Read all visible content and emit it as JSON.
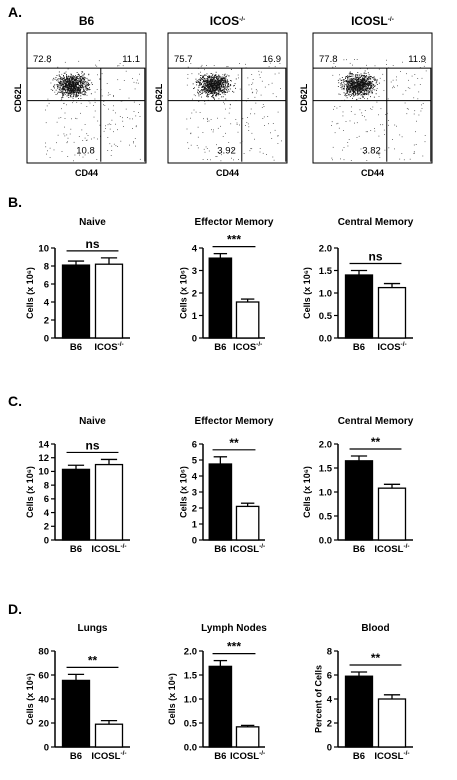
{
  "sections": [
    "A.",
    "B.",
    "C.",
    "D."
  ],
  "superscript_text": "-/-",
  "flow": [
    {
      "title": "B6",
      "xlabel": "CD44",
      "ylabel": "CD62L",
      "q_naive": "72.8",
      "q_cm": "11.1",
      "q_em": "10.8"
    },
    {
      "title": "ICOS",
      "title_sup": "-/-",
      "xlabel": "CD44",
      "ylabel": "CD62L",
      "q_naive": "75.7",
      "q_cm": "16.9",
      "q_em": "3.92"
    },
    {
      "title": "ICOSL",
      "title_sup": "-/-",
      "xlabel": "CD44",
      "ylabel": "CD62L",
      "q_naive": "77.8",
      "q_cm": "11.9",
      "q_em": "3.82"
    }
  ],
  "chart_data": [
    {
      "type": "bar",
      "section": "B.",
      "title": "Naive",
      "ylabel": "Cells (x 10⁶)",
      "categories": [
        "B6",
        "ICOS"
      ],
      "category_sups": [
        "",
        "-/-"
      ],
      "values": [
        8.1,
        8.2
      ],
      "errors": [
        0.45,
        0.7
      ],
      "ylim": [
        0,
        10
      ],
      "yticks": [
        "0",
        "2",
        "4",
        "6",
        "8",
        "10"
      ],
      "significance": "ns",
      "fills": [
        "#000000",
        "#ffffff"
      ]
    },
    {
      "type": "bar",
      "section": "B.",
      "title": "Effector Memory",
      "ylabel": "Cells (x 10⁶)",
      "categories": [
        "B6",
        "ICOS"
      ],
      "category_sups": [
        "",
        "-/-"
      ],
      "values": [
        3.55,
        1.6
      ],
      "errors": [
        0.2,
        0.13
      ],
      "ylim": [
        0,
        4
      ],
      "yticks": [
        "0",
        "1",
        "2",
        "3",
        "4"
      ],
      "significance": "***",
      "fills": [
        "#000000",
        "#ffffff"
      ]
    },
    {
      "type": "bar",
      "section": "B.",
      "title": "Central Memory",
      "ylabel": "Cells (x 10⁶)",
      "categories": [
        "B6",
        "ICOS"
      ],
      "category_sups": [
        "",
        "-/-"
      ],
      "values": [
        1.4,
        1.12
      ],
      "errors": [
        0.1,
        0.09
      ],
      "ylim": [
        0,
        2
      ],
      "yticks": [
        "0.0",
        "0.5",
        "1.0",
        "1.5",
        "2.0"
      ],
      "significance": "ns",
      "fills": [
        "#000000",
        "#ffffff"
      ]
    },
    {
      "type": "bar",
      "section": "C.",
      "title": "Naive",
      "ylabel": "Cells (x 10⁶)",
      "categories": [
        "B6",
        "ICOSL"
      ],
      "category_sups": [
        "",
        "-/-"
      ],
      "values": [
        10.3,
        11.0
      ],
      "errors": [
        0.6,
        0.75
      ],
      "ylim": [
        0,
        14
      ],
      "yticks": [
        "0",
        "2",
        "4",
        "6",
        "8",
        "10",
        "12",
        "14"
      ],
      "significance": "ns",
      "fills": [
        "#000000",
        "#ffffff"
      ]
    },
    {
      "type": "bar",
      "section": "C.",
      "title": "Effector Memory",
      "ylabel": "Cells (x 10⁶)",
      "categories": [
        "B6",
        "ICOSL"
      ],
      "category_sups": [
        "",
        "-/-"
      ],
      "values": [
        4.75,
        2.1
      ],
      "errors": [
        0.45,
        0.2
      ],
      "ylim": [
        0,
        6
      ],
      "yticks": [
        "0",
        "1",
        "2",
        "3",
        "4",
        "5",
        "6"
      ],
      "significance": "**",
      "fills": [
        "#000000",
        "#ffffff"
      ]
    },
    {
      "type": "bar",
      "section": "C.",
      "title": "Central Memory",
      "ylabel": "Cells (x 10⁶)",
      "categories": [
        "B6",
        "ICOSL"
      ],
      "category_sups": [
        "",
        "-/-"
      ],
      "values": [
        1.65,
        1.08
      ],
      "errors": [
        0.1,
        0.08
      ],
      "ylim": [
        0,
        2
      ],
      "yticks": [
        "0.0",
        "0.5",
        "1.0",
        "1.5",
        "2.0"
      ],
      "significance": "**",
      "fills": [
        "#000000",
        "#ffffff"
      ]
    },
    {
      "type": "bar",
      "section": "D.",
      "title": "Lungs",
      "ylabel": "Cells (x 10⁶)",
      "categories": [
        "B6",
        "ICOSL"
      ],
      "category_sups": [
        "",
        "-/-"
      ],
      "values": [
        55.5,
        19
      ],
      "errors": [
        5,
        3
      ],
      "ylim": [
        0,
        80
      ],
      "yticks": [
        "0",
        "20",
        "40",
        "60",
        "80"
      ],
      "significance": "**",
      "fills": [
        "#000000",
        "#ffffff"
      ]
    },
    {
      "type": "bar",
      "section": "D.",
      "title": "Lymph Nodes",
      "ylabel": "Cells (x 10⁶)",
      "categories": [
        "B6",
        "ICOSL"
      ],
      "category_sups": [
        "",
        "-/-"
      ],
      "values": [
        1.68,
        0.42
      ],
      "errors": [
        0.12,
        0.03
      ],
      "ylim": [
        0,
        2
      ],
      "yticks": [
        "0.0",
        "0.5",
        "1.0",
        "1.5",
        "2.0"
      ],
      "significance": "***",
      "fills": [
        "#000000",
        "#ffffff"
      ]
    },
    {
      "type": "bar",
      "section": "D.",
      "title": "Blood",
      "ylabel": "Percent of Cells",
      "categories": [
        "B6",
        "ICOSL"
      ],
      "category_sups": [
        "",
        "-/-"
      ],
      "values": [
        5.9,
        4.0
      ],
      "errors": [
        0.35,
        0.35
      ],
      "ylim": [
        0,
        8
      ],
      "yticks": [
        "0",
        "2",
        "4",
        "6",
        "8"
      ],
      "significance": "**",
      "fills": [
        "#000000",
        "#ffffff"
      ]
    }
  ]
}
